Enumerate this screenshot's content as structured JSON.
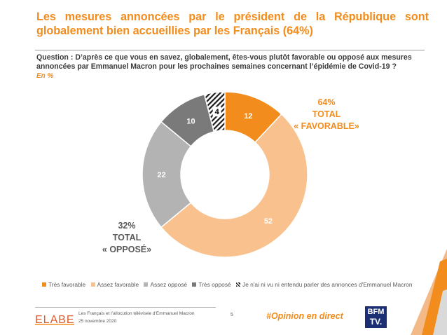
{
  "header": {
    "title": "Les mesures annoncées par le président de la République sont globalement bien accueillies par les Français (64%)",
    "question": "Question : D’après ce que vous en savez, globalement, êtes-vous plutôt favorable ou opposé aux mesures annoncées par Emmanuel Macron pour les prochaines semaines concernant l’épidémie de Covid-19 ?",
    "unit": "En %"
  },
  "chart_data": {
    "type": "pie",
    "donut": true,
    "categories": [
      "Très favorable",
      "Assez favorable",
      "Assez opposé",
      "Très opposé",
      "Je n'ai ni vu ni entendu parler des annonces d'Emmanuel Macron"
    ],
    "values": [
      12,
      52,
      22,
      10,
      4
    ],
    "colors": [
      "#f28c1c",
      "#f8c18e",
      "#b3b3b3",
      "#7a7a7a",
      "hatch"
    ],
    "label_colors": [
      "#ffffff",
      "#ffffff",
      "#ffffff",
      "#ffffff",
      "#000000"
    ],
    "legend_position": "bottom"
  },
  "callouts": {
    "favorable": {
      "pct": "64%",
      "line1": "TOTAL",
      "line2": "« FAVORABLE»",
      "color": "#f28c1c"
    },
    "oppose": {
      "pct": "32%",
      "line1": "TOTAL",
      "line2": "« OPPOSÉ»",
      "color": "#595959"
    }
  },
  "footer": {
    "logo": "ELABE",
    "line1": "Les Français et l’allocution télévisée d’Emmanuel Macron",
    "line2": "25 novembre 2020",
    "page": "5",
    "hashtag": "#Opinion en direct",
    "bfm_line1": "BFM",
    "bfm_line2": "TV."
  }
}
